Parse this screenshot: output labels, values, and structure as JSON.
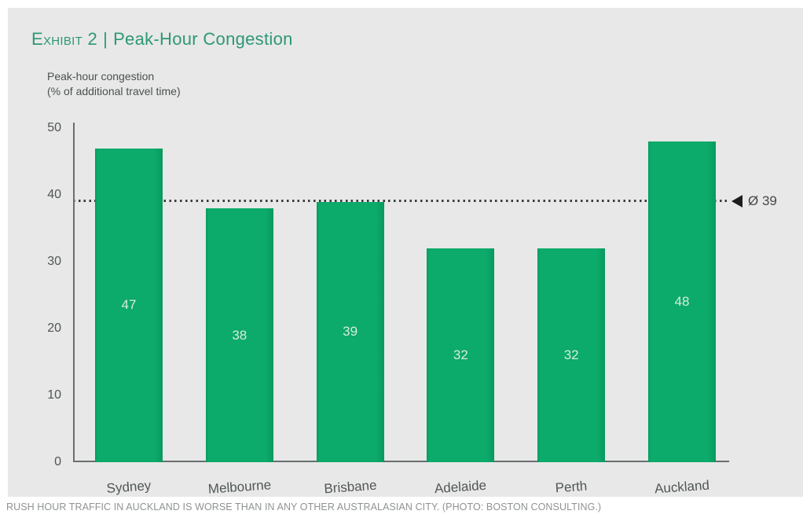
{
  "header": {
    "exhibit": "Exhibit 2",
    "separator": "|",
    "title": "Peak-Hour Congestion"
  },
  "subtitle": {
    "line1": "Peak-hour congestion",
    "line2": "(% of additional travel time)"
  },
  "chart_data": {
    "type": "bar",
    "title": "Exhibit 2 | Peak-Hour Congestion",
    "ylabel": "Peak-hour congestion (% of additional travel time)",
    "xlabel": "",
    "categories": [
      "Sydney",
      "Melbourne",
      "Brisbane",
      "Adelaide",
      "Perth",
      "Auckland"
    ],
    "values": [
      47,
      38,
      39,
      32,
      32,
      48
    ],
    "y_ticks": [
      0,
      10,
      20,
      30,
      40,
      50
    ],
    "ylim": [
      0,
      50
    ],
    "average": 39,
    "average_label": "Ø 39",
    "grid": false,
    "legend": null,
    "bar_color": "#0caa6b",
    "bar_edge_color": "#099a5e",
    "bar_label_color": "#d6ecde"
  },
  "caption": {
    "text": "RUSH HOUR TRAFFIC IN AUCKLAND IS WORSE THAN IN ANY OTHER AUSTRALASIAN CITY. (PHOTO: BOSTON CONSULTING.)"
  },
  "colors": {
    "panel_bg": "#e7e8e7",
    "title_green": "#2e9778",
    "axis_gray": "#6b6e6f",
    "avg_line_dark": "#3a3c3c"
  }
}
